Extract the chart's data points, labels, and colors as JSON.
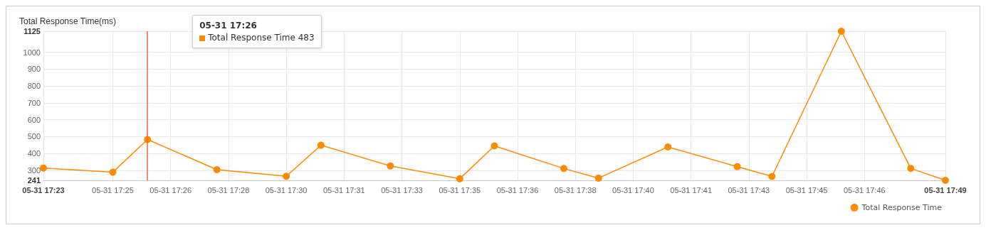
{
  "chart_data": {
    "type": "line",
    "ylabel": "Total Response Time(ms)",
    "x": [
      "--05-31T17:23",
      "--05-31T17:25",
      "--05-31T17:26",
      "--05-31T17:28",
      "--05-31T17:30",
      "--05-31T17:31",
      "--05-31T17:33",
      "--05-31T17:35",
      "--05-31T17:36",
      "--05-31T17:38",
      "--05-31T17:39",
      "--05-31T17:41",
      "--05-31T17:43",
      "--05-31T17:44",
      "--05-31T17:46",
      "--05-31T17:48",
      "--05-31T17:49"
    ],
    "series": [
      {
        "name": "Total Response Time",
        "color": "#ff8a00",
        "values": [
          314,
          289,
          483,
          304,
          265,
          449,
          326,
          250,
          445,
          311,
          254,
          439,
          322,
          264,
          1125,
          312,
          241
        ]
      }
    ],
    "xlim": [
      "--05-31T17:23",
      "--05-31T17:49"
    ],
    "xticks": [
      {
        "value": "--05-31T17:23",
        "label": "05-31 17:23"
      },
      {
        "value": "--05-31T17:25",
        "label": "05-31 17:25"
      },
      {
        "value": "--05-31T17:26:40",
        "label": "05-31 17:26"
      },
      {
        "value": "--05-31T17:28:20",
        "label": "05-31 17:28"
      },
      {
        "value": "--05-31T17:30",
        "label": "05-31 17:30"
      },
      {
        "value": "--05-31T17:31:40",
        "label": "05-31 17:31"
      },
      {
        "value": "--05-31T17:33:20",
        "label": "05-31 17:33"
      },
      {
        "value": "--05-31T17:35",
        "label": "05-31 17:35"
      },
      {
        "value": "--05-31T17:36:40",
        "label": "05-31 17:36"
      },
      {
        "value": "--05-31T17:38:20",
        "label": "05-31 17:38"
      },
      {
        "value": "--05-31T17:40",
        "label": "05-31 17:40"
      },
      {
        "value": "--05-31T17:41:40",
        "label": "05-31 17:41"
      },
      {
        "value": "--05-31T17:43:20",
        "label": "05-31 17:43"
      },
      {
        "value": "--05-31T17:45",
        "label": "05-31 17:45"
      },
      {
        "value": "--05-31T17:46:40",
        "label": "05-31 17:46"
      },
      {
        "value": "--05-31T17:49",
        "label": "05-31 17:49"
      }
    ],
    "ylim": [
      241,
      1125
    ],
    "yticks": [
      241,
      300,
      400,
      500,
      600,
      700,
      800,
      900,
      1000,
      1125
    ],
    "ref_lines": [
      {
        "axis": "x",
        "value": "--05-31T17:26",
        "color": "#f0643c"
      }
    ],
    "annotations": [
      "05-31 17:26",
      "Total Response Time 483"
    ],
    "grid": true,
    "legend": "bottom right",
    "marker": "circle",
    "line_style": "solid"
  }
}
